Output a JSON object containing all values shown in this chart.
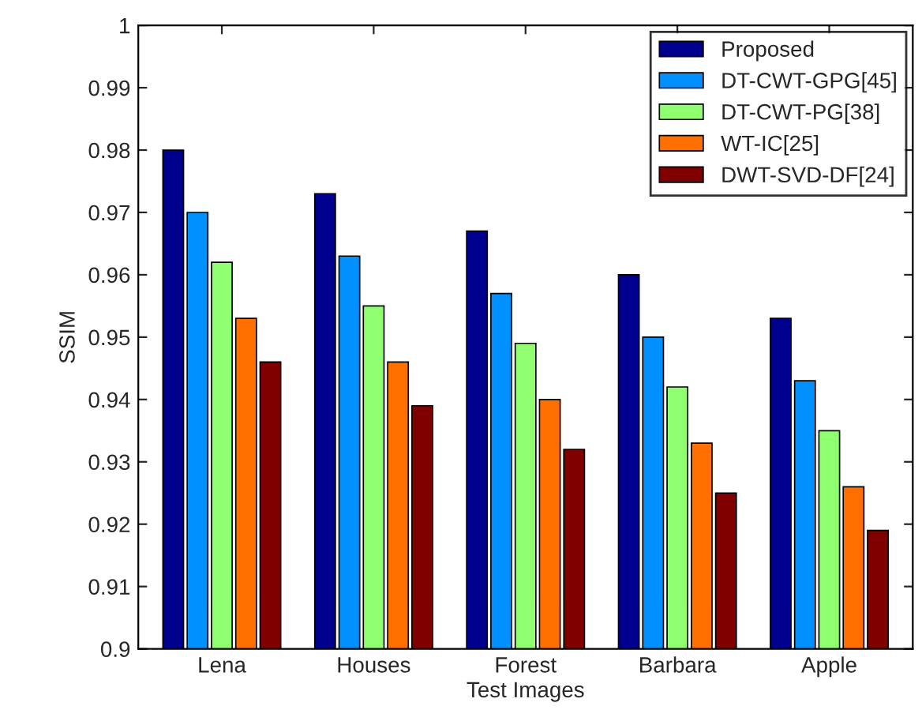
{
  "chart_data": {
    "type": "bar",
    "xlabel": "Test Images",
    "ylabel": "SSIM",
    "categories": [
      "Lena",
      "Houses",
      "Forest",
      "Barbara",
      "Apple"
    ],
    "series": [
      {
        "name": "Proposed",
        "color": "#00008f",
        "values": [
          0.98,
          0.973,
          0.967,
          0.96,
          0.953
        ]
      },
      {
        "name": "DT-CWT-GPG[45]",
        "color": "#0090ff",
        "values": [
          0.97,
          0.963,
          0.957,
          0.95,
          0.943
        ]
      },
      {
        "name": "DT-CWT-PG[38]",
        "color": "#8fff70",
        "values": [
          0.962,
          0.955,
          0.949,
          0.942,
          0.935
        ]
      },
      {
        "name": "WT-IC[25]",
        "color": "#ff7000",
        "values": [
          0.953,
          0.946,
          0.94,
          0.933,
          0.926
        ]
      },
      {
        "name": "DWT-SVD-DF[24]",
        "color": "#800000",
        "values": [
          0.946,
          0.939,
          0.932,
          0.925,
          0.919
        ]
      }
    ],
    "ylim": [
      0.9,
      1
    ],
    "yticks": [
      0.9,
      0.91,
      0.92,
      0.93,
      0.94,
      0.95,
      0.96,
      0.97,
      0.98,
      0.99,
      1
    ],
    "legend": "top right",
    "grid": false
  }
}
